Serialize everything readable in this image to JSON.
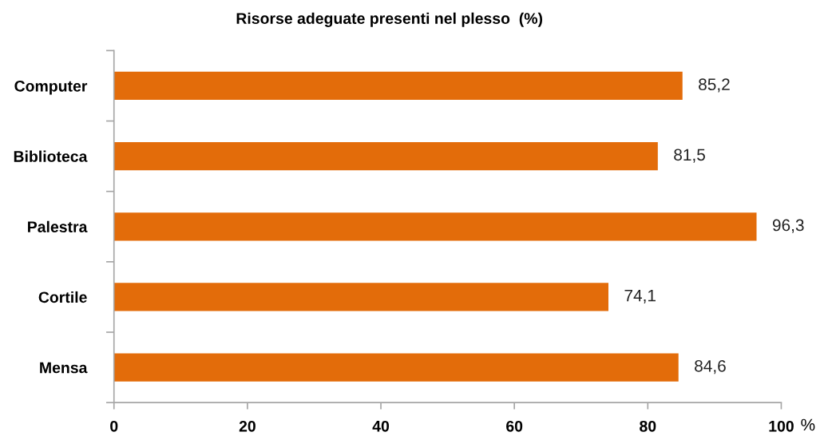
{
  "chart_data": {
    "type": "bar",
    "orientation": "horizontal",
    "title": "Risorse adeguate presenti nel plesso  (%)",
    "xlabel": "%",
    "categories": [
      "Computer",
      "Biblioteca",
      "Palestra",
      "Cortile",
      "Mensa"
    ],
    "values": [
      85.2,
      81.5,
      96.3,
      74.1,
      84.6
    ],
    "color": "#e36c0a",
    "value_labels": [
      "85,2",
      "81,5",
      "96,3",
      "74,1",
      "84,6"
    ],
    "xlim": [
      0,
      100
    ],
    "xticks": [
      0,
      20,
      40,
      60,
      80,
      100
    ]
  }
}
